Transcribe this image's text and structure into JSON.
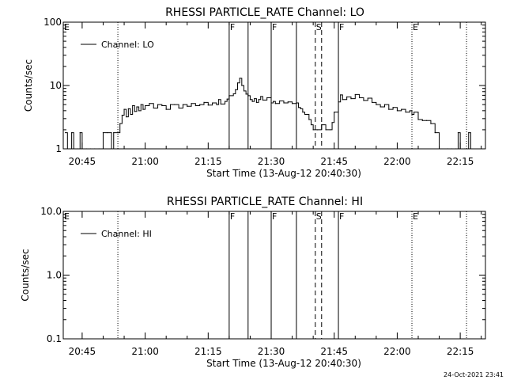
{
  "chart_data": [
    {
      "type": "line",
      "title": "RHESSI PARTICLE_RATE Channel: LO",
      "xlabel": "Start Time (13-Aug-12 20:40:30)",
      "ylabel": "Counts/sec",
      "y_scale": "log",
      "ylim": [
        1,
        100
      ],
      "xlim": [
        "20:40:30",
        "22:21:00"
      ],
      "x_tick_labels": [
        "20:45",
        "21:00",
        "21:15",
        "21:30",
        "21:45",
        "22:00",
        "22:15"
      ],
      "y_tick_labels": [
        "1",
        "10",
        "100"
      ],
      "legend": {
        "position": "top-left"
      },
      "markers": [
        {
          "time": "20:40:30",
          "label": "E",
          "style": "dotted"
        },
        {
          "time": "20:53:30",
          "label": "",
          "style": "dotted"
        },
        {
          "time": "21:20:00",
          "label": "F",
          "style": "solid"
        },
        {
          "time": "21:24:30",
          "label": "",
          "style": "solid"
        },
        {
          "time": "21:30:00",
          "label": "F",
          "style": "solid"
        },
        {
          "time": "21:36:00",
          "label": "",
          "style": "solid"
        },
        {
          "time": "21:40:30",
          "label": "S",
          "style": "dashed"
        },
        {
          "time": "21:42:00",
          "label": "",
          "style": "dashed"
        },
        {
          "time": "21:46:00",
          "label": "F",
          "style": "solid"
        },
        {
          "time": "22:03:30",
          "label": "E",
          "style": "dotted"
        },
        {
          "time": "22:16:30",
          "label": "",
          "style": "dotted"
        }
      ],
      "series": [
        {
          "name": "Channel: LO",
          "points": [
            [
              "20:41:00",
              1.8
            ],
            [
              "20:41:30",
              1.0
            ],
            [
              "20:42:00",
              1.0
            ],
            [
              "20:42:30",
              1.8
            ],
            [
              "20:43:00",
              1.0
            ],
            [
              "20:44:00",
              1.0
            ],
            [
              "20:44:30",
              1.8
            ],
            [
              "20:45:00",
              1.0
            ],
            [
              "20:46:00",
              1.0
            ],
            [
              "20:47:00",
              1.0
            ],
            [
              "20:48:00",
              1.0
            ],
            [
              "20:49:00",
              1.0
            ],
            [
              "20:50:00",
              1.8
            ],
            [
              "20:51:00",
              1.8
            ],
            [
              "20:52:00",
              1.0
            ],
            [
              "20:52:30",
              1.8
            ],
            [
              "20:53:30",
              1.8
            ],
            [
              "20:54:00",
              2.5
            ],
            [
              "20:54:30",
              3.4
            ],
            [
              "20:55:00",
              4.2
            ],
            [
              "20:55:30",
              3.2
            ],
            [
              "20:56:00",
              4.3
            ],
            [
              "20:56:30",
              3.5
            ],
            [
              "20:57:00",
              4.8
            ],
            [
              "20:57:30",
              3.9
            ],
            [
              "20:58:00",
              4.6
            ],
            [
              "20:58:30",
              4.0
            ],
            [
              "20:59:00",
              5.0
            ],
            [
              "20:59:30",
              4.2
            ],
            [
              "21:00:00",
              4.8
            ],
            [
              "21:01:00",
              5.2
            ],
            [
              "21:02:00",
              4.4
            ],
            [
              "21:03:00",
              5.0
            ],
            [
              "21:04:00",
              4.8
            ],
            [
              "21:05:00",
              4.2
            ],
            [
              "21:06:00",
              5.0
            ],
            [
              "21:07:00",
              5.0
            ],
            [
              "21:08:00",
              4.4
            ],
            [
              "21:09:00",
              5.0
            ],
            [
              "21:10:00",
              4.7
            ],
            [
              "21:11:00",
              5.2
            ],
            [
              "21:12:00",
              4.8
            ],
            [
              "21:13:00",
              5.0
            ],
            [
              "21:14:00",
              5.4
            ],
            [
              "21:15:00",
              4.9
            ],
            [
              "21:16:00",
              5.3
            ],
            [
              "21:17:00",
              5.0
            ],
            [
              "21:17:30",
              6.0
            ],
            [
              "21:18:00",
              5.1
            ],
            [
              "21:19:00",
              5.6
            ],
            [
              "21:19:30",
              6.1
            ],
            [
              "21:20:00",
              6.9
            ],
            [
              "21:21:00",
              7.4
            ],
            [
              "21:21:30",
              8.6
            ],
            [
              "21:22:00",
              11.0
            ],
            [
              "21:22:30",
              13.0
            ],
            [
              "21:23:00",
              10.0
            ],
            [
              "21:23:30",
              8.2
            ],
            [
              "21:24:00",
              7.3
            ],
            [
              "21:24:30",
              6.9
            ],
            [
              "21:25:00",
              6.0
            ],
            [
              "21:25:30",
              5.6
            ],
            [
              "21:26:00",
              6.2
            ],
            [
              "21:26:30",
              5.4
            ],
            [
              "21:27:00",
              6.0
            ],
            [
              "21:27:30",
              6.7
            ],
            [
              "21:28:00",
              5.9
            ],
            [
              "21:29:00",
              6.4
            ],
            [
              "21:30:00",
              5.3
            ],
            [
              "21:30:30",
              5.6
            ],
            [
              "21:31:00",
              5.2
            ],
            [
              "21:32:00",
              5.7
            ],
            [
              "21:33:00",
              5.3
            ],
            [
              "21:34:00",
              5.5
            ],
            [
              "21:35:00",
              5.2
            ],
            [
              "21:36:00",
              5.3
            ],
            [
              "21:36:30",
              4.5
            ],
            [
              "21:37:00",
              4.3
            ],
            [
              "21:37:30",
              3.8
            ],
            [
              "21:38:00",
              3.5
            ],
            [
              "21:39:00",
              2.9
            ],
            [
              "21:39:30",
              2.4
            ],
            [
              "21:40:00",
              2.0
            ],
            [
              "21:41:00",
              2.0
            ],
            [
              "21:42:00",
              2.4
            ],
            [
              "21:43:00",
              2.0
            ],
            [
              "21:44:00",
              2.0
            ],
            [
              "21:44:30",
              2.6
            ],
            [
              "21:45:00",
              3.8
            ],
            [
              "21:46:00",
              5.5
            ],
            [
              "21:46:30",
              7.1
            ],
            [
              "21:47:00",
              6.0
            ],
            [
              "21:48:00",
              6.6
            ],
            [
              "21:49:00",
              6.2
            ],
            [
              "21:50:00",
              7.2
            ],
            [
              "21:51:00",
              6.4
            ],
            [
              "21:52:00",
              5.8
            ],
            [
              "21:53:00",
              6.3
            ],
            [
              "21:54:00",
              5.4
            ],
            [
              "21:55:00",
              5.0
            ],
            [
              "21:56:00",
              4.6
            ],
            [
              "21:57:00",
              5.0
            ],
            [
              "21:58:00",
              4.2
            ],
            [
              "21:59:00",
              4.5
            ],
            [
              "22:00:00",
              4.0
            ],
            [
              "22:01:00",
              4.2
            ],
            [
              "22:02:00",
              3.8
            ],
            [
              "22:03:00",
              4.0
            ],
            [
              "22:03:30",
              3.5
            ],
            [
              "22:04:00",
              3.8
            ],
            [
              "22:05:00",
              2.9
            ],
            [
              "22:06:00",
              2.8
            ],
            [
              "22:07:00",
              2.8
            ],
            [
              "22:08:00",
              2.5
            ],
            [
              "22:09:00",
              1.8
            ],
            [
              "22:10:00",
              1.0
            ],
            [
              "22:12:00",
              1.0
            ],
            [
              "22:13:00",
              1.0
            ],
            [
              "22:14:00",
              1.0
            ],
            [
              "22:14:30",
              1.8
            ],
            [
              "22:15:00",
              1.0
            ],
            [
              "22:16:00",
              1.0
            ],
            [
              "22:17:00",
              1.8
            ],
            [
              "22:17:30",
              1.0
            ]
          ]
        }
      ]
    },
    {
      "type": "line",
      "title": "RHESSI PARTICLE_RATE Channel: HI",
      "xlabel": "Start Time (13-Aug-12 20:40:30)",
      "ylabel": "Counts/sec",
      "y_scale": "log",
      "ylim": [
        0.1,
        10
      ],
      "xlim": [
        "20:40:30",
        "22:21:00"
      ],
      "x_tick_labels": [
        "20:45",
        "21:00",
        "21:15",
        "21:30",
        "21:45",
        "22:00",
        "22:15"
      ],
      "y_tick_labels": [
        "0.1",
        "1.0",
        "10.0"
      ],
      "legend": {
        "position": "top-left"
      },
      "markers": [
        {
          "time": "20:40:30",
          "label": "E",
          "style": "dotted"
        },
        {
          "time": "20:53:30",
          "label": "",
          "style": "dotted"
        },
        {
          "time": "21:20:00",
          "label": "F",
          "style": "solid"
        },
        {
          "time": "21:24:30",
          "label": "",
          "style": "solid"
        },
        {
          "time": "21:30:00",
          "label": "F",
          "style": "solid"
        },
        {
          "time": "21:36:00",
          "label": "",
          "style": "solid"
        },
        {
          "time": "21:40:30",
          "label": "S",
          "style": "dashed"
        },
        {
          "time": "21:42:00",
          "label": "",
          "style": "dashed"
        },
        {
          "time": "21:46:00",
          "label": "F",
          "style": "solid"
        },
        {
          "time": "22:03:30",
          "label": "E",
          "style": "dotted"
        },
        {
          "time": "22:16:30",
          "label": "",
          "style": "dotted"
        }
      ],
      "series": [
        {
          "name": "Channel: HI",
          "points": []
        }
      ]
    }
  ],
  "footer_timestamp": "24-Oct-2021 23:41"
}
